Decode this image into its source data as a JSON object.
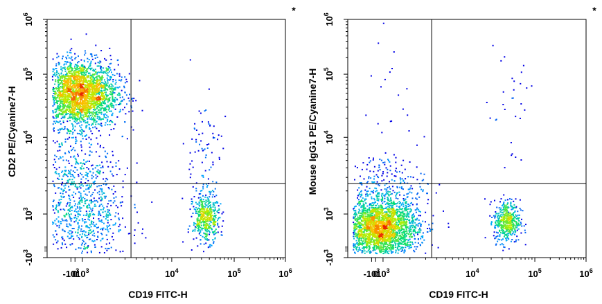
{
  "chart_data": [
    {
      "type": "scatter",
      "xlabel": "CD19 FITC-H",
      "ylabel": "CD2 PE/Cyanine7-H",
      "corner_mark": "*",
      "xscale": "biexponential",
      "yscale": "biexponential",
      "xlim": [
        -1000,
        1000000
      ],
      "ylim": [
        -1000,
        1000000
      ],
      "x_ticks": [
        {
          "base": "-10",
          "exp": "3"
        },
        {
          "base": "0",
          "exp": ""
        },
        {
          "base": "10",
          "exp": "3"
        },
        {
          "base": "10",
          "exp": "4"
        },
        {
          "base": "10",
          "exp": "5"
        },
        {
          "base": "10",
          "exp": "6"
        }
      ],
      "y_ticks": [
        {
          "base": "-10",
          "exp": "3"
        },
        {
          "base": "10",
          "exp": "3"
        },
        {
          "base": "10",
          "exp": "4"
        },
        {
          "base": "10",
          "exp": "5"
        },
        {
          "base": "10",
          "exp": "6"
        }
      ],
      "quadrant_gate": {
        "x": 3500,
        "y": 2500
      },
      "populations": [
        {
          "x": 500,
          "y": 50000,
          "count": 2600,
          "spread": [
            0.16,
            0.14
          ]
        },
        {
          "x": 700,
          "y": 900,
          "count": 700,
          "spread": [
            0.2,
            0.22
          ]
        },
        {
          "x": 35000,
          "y": 900,
          "count": 450,
          "spread": [
            0.055,
            0.1
          ]
        },
        {
          "x": 600,
          "y": 4000,
          "count": 250,
          "spread": [
            0.16,
            0.18
          ]
        },
        {
          "x": 30000,
          "y": 5000,
          "count": 90,
          "spread": [
            0.08,
            0.28
          ]
        }
      ]
    },
    {
      "type": "scatter",
      "xlabel": "CD19 FITC-H",
      "ylabel": "Mouse IgG1 PE/Cyanine7-H",
      "corner_mark": "*",
      "xscale": "biexponential",
      "yscale": "biexponential",
      "xlim": [
        -1000,
        1000000
      ],
      "ylim": [
        -1000,
        1000000
      ],
      "x_ticks": [
        {
          "base": "-10",
          "exp": "3"
        },
        {
          "base": "0",
          "exp": ""
        },
        {
          "base": "10",
          "exp": "3"
        },
        {
          "base": "10",
          "exp": "4"
        },
        {
          "base": "10",
          "exp": "5"
        },
        {
          "base": "10",
          "exp": "6"
        }
      ],
      "y_ticks": [
        {
          "base": "-10",
          "exp": "3"
        },
        {
          "base": "10",
          "exp": "3"
        },
        {
          "base": "10",
          "exp": "4"
        },
        {
          "base": "10",
          "exp": "5"
        },
        {
          "base": "10",
          "exp": "6"
        }
      ],
      "quadrant_gate": {
        "x": 3500,
        "y": 2500
      },
      "populations": [
        {
          "x": 550,
          "y": 600,
          "count": 2600,
          "spread": [
            0.16,
            0.12
          ]
        },
        {
          "x": 35000,
          "y": 800,
          "count": 450,
          "spread": [
            0.055,
            0.09
          ]
        },
        {
          "x": 900,
          "y": 2500,
          "count": 220,
          "spread": [
            0.18,
            0.12
          ]
        },
        {
          "x": 1200,
          "y": 20000,
          "count": 25,
          "spread": [
            0.1,
            0.35
          ]
        },
        {
          "x": 40000,
          "y": 30000,
          "count": 30,
          "spread": [
            0.1,
            0.4
          ]
        }
      ]
    }
  ]
}
